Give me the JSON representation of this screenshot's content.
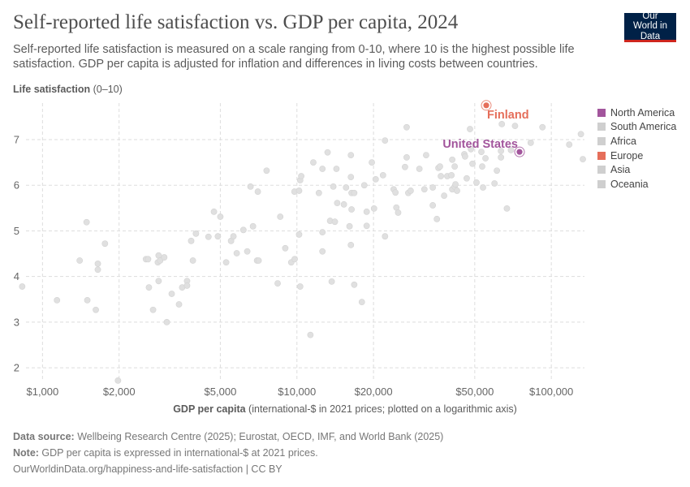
{
  "header": {
    "title": "Self-reported life satisfaction vs. GDP per capita, 2024",
    "subtitle": "Self-reported life satisfaction is measured on a scale ranging from 0-10, where 10 is the highest possible life satisfaction. GDP per capita is adjusted for inflation and differences in living costs between countries.",
    "logo": "Our World in Data"
  },
  "colors": {
    "north_america": "#a2559c",
    "europe": "#e56e5a",
    "other": "#cfcfcf",
    "logo_bg": "#002147",
    "logo_accent": "#ce261e"
  },
  "chart_data": {
    "type": "scatter",
    "title": "Self-reported life satisfaction vs. GDP per capita, 2024",
    "ylabel_bold": "Life satisfaction",
    "ylabel_rest": " (0–10)",
    "xlabel_bold": "GDP per capita",
    "xlabel_rest": " (international-$ in 2021 prices; plotted on a logarithmic axis)",
    "x_scale": "log",
    "xlim": [
      800,
      135000
    ],
    "ylim": [
      1.7,
      7.8
    ],
    "grid": true,
    "x_ticks": [
      {
        "v": 1000,
        "label": "$1,000"
      },
      {
        "v": 2000,
        "label": "$2,000"
      },
      {
        "v": 5000,
        "label": "$5,000"
      },
      {
        "v": 10000,
        "label": "$10,000"
      },
      {
        "v": 20000,
        "label": "$20,000"
      },
      {
        "v": 50000,
        "label": "$50,000"
      },
      {
        "v": 100000,
        "label": "$100,000"
      }
    ],
    "y_ticks": [
      {
        "v": 2,
        "label": "2"
      },
      {
        "v": 3,
        "label": "3"
      },
      {
        "v": 4,
        "label": "4"
      },
      {
        "v": 5,
        "label": "5"
      },
      {
        "v": 6,
        "label": "6"
      },
      {
        "v": 7,
        "label": "7"
      }
    ],
    "legend_placement": "right",
    "legend": [
      {
        "label": "North America",
        "color": "#a2559c"
      },
      {
        "label": "South America",
        "color": "#cfcfcf"
      },
      {
        "label": "Africa",
        "color": "#cfcfcf"
      },
      {
        "label": "Europe",
        "color": "#e56e5a"
      },
      {
        "label": "Asia",
        "color": "#cfcfcf"
      },
      {
        "label": "Oceania",
        "color": "#cfcfcf"
      }
    ],
    "highlighted": [
      {
        "label": "Finland",
        "gdp": 55500,
        "ls": 7.75,
        "color": "#e56e5a"
      },
      {
        "label": "United States",
        "gdp": 75000,
        "ls": 6.73,
        "color": "#a2559c"
      }
    ],
    "points": [
      [
        832,
        3.78
      ],
      [
        1140,
        3.48
      ],
      [
        1400,
        4.35
      ],
      [
        1490,
        5.19
      ],
      [
        1500,
        3.48
      ],
      [
        1620,
        3.27
      ],
      [
        1650,
        4.28
      ],
      [
        1650,
        4.15
      ],
      [
        1760,
        4.72
      ],
      [
        1980,
        1.72
      ],
      [
        2550,
        4.38
      ],
      [
        2600,
        4.38
      ],
      [
        2620,
        3.76
      ],
      [
        2720,
        3.27
      ],
      [
        2840,
        4.31
      ],
      [
        2860,
        4.46
      ],
      [
        2860,
        3.9
      ],
      [
        2900,
        4.35
      ],
      [
        3010,
        4.42
      ],
      [
        3080,
        3.0
      ],
      [
        3220,
        3.62
      ],
      [
        3440,
        3.39
      ],
      [
        3540,
        3.76
      ],
      [
        3700,
        3.9
      ],
      [
        3700,
        3.8
      ],
      [
        3840,
        4.78
      ],
      [
        3900,
        4.35
      ],
      [
        4010,
        4.94
      ],
      [
        4490,
        4.87
      ],
      [
        4720,
        5.42
      ],
      [
        4890,
        4.88
      ],
      [
        5000,
        5.31
      ],
      [
        5270,
        4.31
      ],
      [
        5510,
        4.78
      ],
      [
        5630,
        4.88
      ],
      [
        5800,
        4.51
      ],
      [
        6160,
        5.02
      ],
      [
        6380,
        4.55
      ],
      [
        6570,
        5.97
      ],
      [
        6720,
        5.1
      ],
      [
        6970,
        4.35
      ],
      [
        7020,
        5.86
      ],
      [
        7070,
        4.35
      ],
      [
        7600,
        6.32
      ],
      [
        8400,
        3.85
      ],
      [
        8600,
        5.31
      ],
      [
        9000,
        4.62
      ],
      [
        9500,
        4.31
      ],
      [
        9780,
        5.86
      ],
      [
        10200,
        5.88
      ],
      [
        10300,
        6.11
      ],
      [
        10400,
        6.2
      ],
      [
        10200,
        4.92
      ],
      [
        9800,
        4.38
      ],
      [
        10300,
        3.78
      ],
      [
        11300,
        2.72
      ],
      [
        11600,
        6.5
      ],
      [
        12200,
        5.83
      ],
      [
        12600,
        6.36
      ],
      [
        12600,
        4.97
      ],
      [
        12600,
        4.55
      ],
      [
        13200,
        6.72
      ],
      [
        13500,
        5.22
      ],
      [
        13700,
        3.89
      ],
      [
        13900,
        5.97
      ],
      [
        14100,
        5.2
      ],
      [
        14300,
        6.36
      ],
      [
        14400,
        5.61
      ],
      [
        15300,
        5.58
      ],
      [
        15600,
        5.95
      ],
      [
        16100,
        5.1
      ],
      [
        16300,
        6.66
      ],
      [
        16300,
        6.18
      ],
      [
        16300,
        4.69
      ],
      [
        16400,
        5.83
      ],
      [
        16400,
        5.47
      ],
      [
        16800,
        5.83
      ],
      [
        16800,
        3.82
      ],
      [
        18000,
        3.44
      ],
      [
        18400,
        6.0
      ],
      [
        18800,
        5.42
      ],
      [
        18800,
        5.11
      ],
      [
        19700,
        6.5
      ],
      [
        20100,
        5.49
      ],
      [
        20400,
        6.13
      ],
      [
        21800,
        6.22
      ],
      [
        22200,
        6.98
      ],
      [
        22200,
        4.88
      ],
      [
        24000,
        5.91
      ],
      [
        24400,
        5.84
      ],
      [
        24600,
        5.51
      ],
      [
        25000,
        5.4
      ],
      [
        26600,
        6.4
      ],
      [
        27000,
        6.61
      ],
      [
        27000,
        7.27
      ],
      [
        27400,
        5.83
      ],
      [
        28000,
        5.88
      ],
      [
        30300,
        6.36
      ],
      [
        31700,
        5.91
      ],
      [
        32200,
        6.66
      ],
      [
        34200,
        5.95
      ],
      [
        34200,
        5.56
      ],
      [
        35500,
        5.26
      ],
      [
        36000,
        6.38
      ],
      [
        36500,
        6.41
      ],
      [
        36800,
        6.2
      ],
      [
        37900,
        5.77
      ],
      [
        39000,
        6.2
      ],
      [
        40500,
        6.22
      ],
      [
        40800,
        6.56
      ],
      [
        40800,
        5.91
      ],
      [
        41700,
        6.41
      ],
      [
        41700,
        5.97
      ],
      [
        42000,
        6.02
      ],
      [
        42600,
        5.88
      ],
      [
        45500,
        6.68
      ],
      [
        45800,
        6.63
      ],
      [
        46500,
        6.15
      ],
      [
        47900,
        7.23
      ],
      [
        48300,
        6.79
      ],
      [
        49000,
        6.47
      ],
      [
        50800,
        6.06
      ],
      [
        53100,
        6.73
      ],
      [
        53500,
        6.41
      ],
      [
        53900,
        5.95
      ],
      [
        55100,
        6.59
      ],
      [
        59800,
        6.04
      ],
      [
        61100,
        6.32
      ],
      [
        63400,
        6.61
      ],
      [
        63400,
        6.75
      ],
      [
        63900,
        7.34
      ],
      [
        66900,
        5.49
      ],
      [
        69400,
        6.77
      ],
      [
        72000,
        7.3
      ],
      [
        83000,
        6.93
      ],
      [
        92300,
        7.27
      ],
      [
        117600,
        6.89
      ],
      [
        130700,
        7.12
      ],
      [
        134000,
        6.57
      ]
    ]
  },
  "footer": {
    "source_label": "Data source:",
    "source_text": " Wellbeing Research Centre (2025); Eurostat, OECD, IMF, and World Bank (2025)",
    "note_label": "Note:",
    "note_text": " GDP per capita is expressed in international-$ at 2021 prices.",
    "url": "OurWorldinData.org/happiness-and-life-satisfaction | CC BY"
  }
}
